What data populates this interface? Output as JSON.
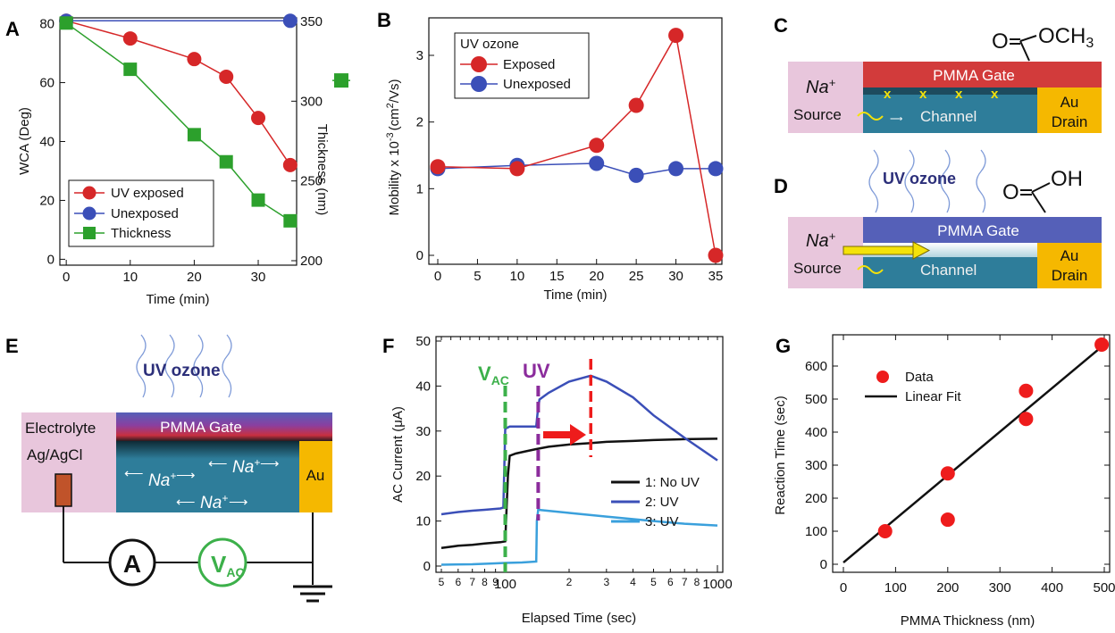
{
  "panels": {
    "A": {
      "label": "A",
      "xlabel": "Time (min)",
      "ylabel": "WCA (Deg)",
      "y2label": "Thickness (nm)"
    },
    "B": {
      "label": "B",
      "xlabel": "Time (min)",
      "ylabel_main": "Mobility x 10",
      "ylabel_exp": "-3",
      "ylabel_unit1": "(cm",
      "ylabel_sup2": "2",
      "ylabel_unit2": "/Vs)",
      "legend_title": "UV ozone"
    },
    "C": {
      "label": "C",
      "gate": "PMMA Gate",
      "ion": "Na",
      "ion_charge": "+",
      "source": "Source",
      "channel": "Channel",
      "drain1": "Au",
      "drain2": "Drain",
      "mol_o": "O",
      "mol_group": "OCH",
      "mol_sub": "3",
      "x_marks": [
        "x",
        "x",
        "x",
        "x"
      ]
    },
    "D": {
      "label": "D",
      "uv": "UV ozone",
      "gate": "PMMA Gate",
      "ion": "Na",
      "ion_charge": "+",
      "source": "Source",
      "channel": "Channel",
      "drain1": "Au",
      "drain2": "Drain",
      "mol_o": "O",
      "mol_group": "OH"
    },
    "E": {
      "label": "E",
      "uv": "UV ozone",
      "electrolyte": "Electrolyte",
      "gate": "PMMA Gate",
      "electrode": "Ag/AgCl",
      "au": "Au",
      "ion": "Na",
      "ion_charge": "+",
      "ammeter": "A",
      "vac": "V",
      "vac_sub": "AC"
    },
    "F": {
      "label": "F",
      "xlabel": "Elapsed Time (sec)",
      "ylabel": "AC Current (μA)",
      "vac": "V",
      "vac_sub": "AC",
      "uv": "UV",
      "x_minor_labels": [
        "5",
        "6",
        "7",
        "8",
        "9",
        "2",
        "3",
        "4",
        "5",
        "6",
        "7",
        "8"
      ],
      "x_major_labels": [
        "100",
        "1000"
      ]
    },
    "G": {
      "label": "G",
      "xlabel": "PMMA Thickness (nm)",
      "ylabel": "Reaction Time (sec)"
    }
  },
  "colors": {
    "red": "#d62728",
    "blue": "#3b4fb8",
    "green": "#2ca02c",
    "light_blue": "#3aa0dc",
    "vac_green": "#3cb04a",
    "uv_purple": "#8b2c9c",
    "pmma_red": "#d23b3b",
    "pmma_blue": "#5560b8",
    "channel": "#2e7d9a",
    "pink": "#e8c6dc",
    "gold": "#f5b800"
  },
  "chart_data": [
    {
      "panel": "A",
      "type": "line",
      "x": [
        0,
        10,
        20,
        25,
        30,
        35
      ],
      "xlim": [
        -1,
        36
      ],
      "ylim": [
        -2,
        82
      ],
      "y2lim": [
        200,
        350
      ],
      "xticks": [
        0,
        10,
        20,
        30
      ],
      "yticks": [
        0,
        20,
        40,
        60,
        80
      ],
      "y2ticks": [
        200,
        250,
        300,
        350
      ],
      "series": [
        {
          "name": "UV exposed",
          "axis": "left",
          "color": "#d62728",
          "marker": "circle",
          "x": [
            0,
            10,
            20,
            25,
            30,
            35
          ],
          "values": [
            81,
            75,
            68,
            62,
            48,
            32
          ]
        },
        {
          "name": "Unexposed",
          "axis": "left",
          "color": "#3b4fb8",
          "marker": "circle",
          "x": [
            0,
            35
          ],
          "values": [
            81,
            81
          ]
        },
        {
          "name": "Thickness",
          "axis": "right",
          "color": "#2ca02c",
          "marker": "square",
          "x": [
            0,
            10,
            20,
            25,
            30,
            35
          ],
          "values": [
            349,
            320,
            279,
            262,
            238,
            225
          ]
        }
      ],
      "right_legend_marker_value": 313
    },
    {
      "panel": "B",
      "type": "line",
      "xlim": [
        -1,
        36
      ],
      "ylim": [
        -0.1,
        3.55
      ],
      "xticks": [
        0,
        5,
        10,
        15,
        20,
        25,
        30,
        35
      ],
      "yticks": [
        0,
        1,
        2,
        3
      ],
      "series": [
        {
          "name": "Exposed",
          "color": "#d62728",
          "x": [
            0,
            10,
            20,
            25,
            30,
            35
          ],
          "values": [
            1.33,
            1.3,
            1.65,
            2.25,
            3.3,
            0.0
          ]
        },
        {
          "name": "Unexposed",
          "color": "#3b4fb8",
          "x": [
            0,
            10,
            20,
            25,
            30,
            35
          ],
          "values": [
            1.3,
            1.35,
            1.38,
            1.2,
            1.3,
            1.3
          ]
        }
      ]
    },
    {
      "panel": "F",
      "type": "line",
      "xscale": "log",
      "xlim": [
        50,
        1050
      ],
      "ylim": [
        -2,
        50
      ],
      "yticks": [
        0,
        10,
        20,
        30,
        40,
        50
      ],
      "x_minor_ticks": [
        50,
        60,
        70,
        80,
        90,
        200,
        300,
        400,
        500,
        600,
        700,
        800
      ],
      "x_major_ticks": [
        100,
        1000
      ],
      "vac_line_x": 100,
      "uv_line_x": 143,
      "peak_line_x": 253,
      "series": [
        {
          "name": "1: No UV",
          "color": "#111111",
          "x": [
            50,
            60,
            70,
            80,
            95,
            100,
            103,
            105,
            112,
            125,
            140,
            160,
            200,
            250,
            300,
            400,
            500,
            700,
            1000
          ],
          "values": [
            4,
            4.5,
            4.7,
            5,
            5.3,
            5.5,
            20,
            24.5,
            25,
            25.5,
            26,
            26.5,
            27,
            27.3,
            27.6,
            27.8,
            28,
            28.2,
            28.3
          ]
        },
        {
          "name": "2: UV",
          "color": "#3b4fb8",
          "x": [
            50,
            60,
            70,
            80,
            95,
            98,
            100,
            105,
            120,
            140,
            142,
            145,
            160,
            200,
            253,
            300,
            400,
            500,
            700,
            1000
          ],
          "values": [
            11.5,
            12,
            12.3,
            12.5,
            12.8,
            13,
            30.5,
            31,
            31,
            31,
            34,
            37,
            38.5,
            41,
            42.3,
            41,
            37.5,
            33.5,
            28.5,
            23.5
          ]
        },
        {
          "name": "3: UV",
          "color": "#3aa0dc",
          "x": [
            50,
            70,
            90,
            100,
            120,
            140,
            141,
            143,
            150,
            200,
            300,
            500,
            700,
            1000
          ],
          "values": [
            0.3,
            0.4,
            0.6,
            0.7,
            0.8,
            1,
            10,
            12.5,
            12.4,
            11.8,
            11,
            10,
            9.4,
            9
          ]
        }
      ]
    },
    {
      "panel": "G",
      "type": "scatter",
      "xlim": [
        -10,
        520
      ],
      "ylim": [
        -20,
        660
      ],
      "xticks": [
        0,
        100,
        200,
        300,
        400,
        500
      ],
      "yticks": [
        0,
        100,
        200,
        300,
        400,
        500,
        600
      ],
      "series": [
        {
          "name": "Data",
          "color": "#ee1c1c",
          "x": [
            80,
            200,
            200,
            350,
            350,
            495
          ],
          "values": [
            100,
            275,
            135,
            525,
            440,
            665
          ]
        },
        {
          "name": "Linear Fit",
          "color": "#111111",
          "x": [
            0,
            500
          ],
          "values": [
            5,
            665
          ]
        }
      ]
    }
  ]
}
